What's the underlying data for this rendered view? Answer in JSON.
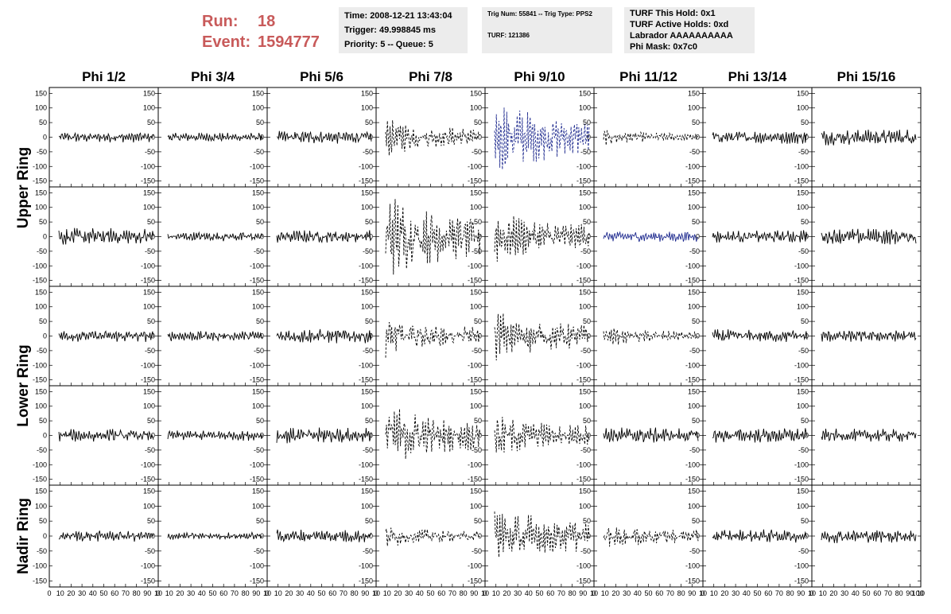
{
  "run": {
    "run_label": "Run:",
    "run_value": "18",
    "event_label": "Event:",
    "event_value": "1594777"
  },
  "time_box": {
    "time": "Time: 2008-12-21 13:43:04",
    "trigger": "Trigger: 49.998845 ms",
    "priority": "Priority: 5 -- Queue: 5"
  },
  "trig_box": {
    "trig": "Trig Num: 55841 -- Trig Type: PPS2",
    "turf": "TURF: 121386"
  },
  "turf_box": {
    "this_hold": "TURF This Hold: 0x1",
    "active_holds": "TURF Active Holds: 0xd",
    "labrador": "Labrador AAAAAAAAAA",
    "phi_mask": "Phi Mask: 0x7c0"
  },
  "chart_data": {
    "type": "line",
    "columns": [
      "Phi 1/2",
      "Phi 3/4",
      "Phi 5/6",
      "Phi 7/8",
      "Phi 9/10",
      "Phi 11/12",
      "Phi 13/14",
      "Phi 15/16"
    ],
    "rows": [
      "Upper Ring",
      "Upper Ring",
      "Lower Ring",
      "Lower Ring",
      "Nadir Ring"
    ],
    "ring_labels": [
      "Upper Ring",
      "Lower Ring",
      "Nadir Ring"
    ],
    "ylim": [
      -170,
      170
    ],
    "xlim": [
      0,
      100
    ],
    "y_ticks": [
      -150,
      -100,
      -50,
      0,
      50,
      100,
      150
    ],
    "x_tick_labels": [
      "0",
      "10",
      "20",
      "30",
      "40",
      "50",
      "60",
      "70",
      "80",
      "90",
      "10"
    ],
    "x_tick_last": "100",
    "colors": {
      "black": "#000000",
      "blue": "#1f2b8f"
    },
    "panels": [
      [
        {
          "amp": 14,
          "style": "solid"
        },
        {
          "amp": 12,
          "style": "solid"
        },
        {
          "amp": 18,
          "style": "solid"
        },
        {
          "amp": 38,
          "style": "dashed"
        },
        {
          "amp": 80,
          "style": "dashed-blue"
        },
        {
          "amp": 16,
          "style": "dashed"
        },
        {
          "amp": 18,
          "style": "solid"
        },
        {
          "amp": 22,
          "style": "solid"
        }
      ],
      [
        {
          "amp": 24,
          "style": "solid"
        },
        {
          "amp": 13,
          "style": "solid"
        },
        {
          "amp": 18,
          "style": "solid"
        },
        {
          "amp": 90,
          "style": "dashed"
        },
        {
          "amp": 55,
          "style": "dashed"
        },
        {
          "amp": 15,
          "style": "solid-blue"
        },
        {
          "amp": 18,
          "style": "solid"
        },
        {
          "amp": 22,
          "style": "solid"
        }
      ],
      [
        {
          "amp": 16,
          "style": "solid"
        },
        {
          "amp": 14,
          "style": "solid"
        },
        {
          "amp": 20,
          "style": "solid"
        },
        {
          "amp": 40,
          "style": "dashed"
        },
        {
          "amp": 55,
          "style": "dashed"
        },
        {
          "amp": 20,
          "style": "dashed"
        },
        {
          "amp": 18,
          "style": "solid"
        },
        {
          "amp": 16,
          "style": "solid"
        }
      ],
      [
        {
          "amp": 18,
          "style": "solid"
        },
        {
          "amp": 14,
          "style": "solid"
        },
        {
          "amp": 22,
          "style": "solid"
        },
        {
          "amp": 65,
          "style": "dashed"
        },
        {
          "amp": 45,
          "style": "dashed"
        },
        {
          "amp": 22,
          "style": "solid"
        },
        {
          "amp": 20,
          "style": "solid"
        },
        {
          "amp": 18,
          "style": "solid"
        }
      ],
      [
        {
          "amp": 15,
          "style": "solid"
        },
        {
          "amp": 10,
          "style": "solid"
        },
        {
          "amp": 18,
          "style": "solid"
        },
        {
          "amp": 22,
          "style": "dashed"
        },
        {
          "amp": 65,
          "style": "dashed"
        },
        {
          "amp": 28,
          "style": "dashed"
        },
        {
          "amp": 18,
          "style": "solid"
        },
        {
          "amp": 18,
          "style": "solid"
        }
      ]
    ]
  }
}
